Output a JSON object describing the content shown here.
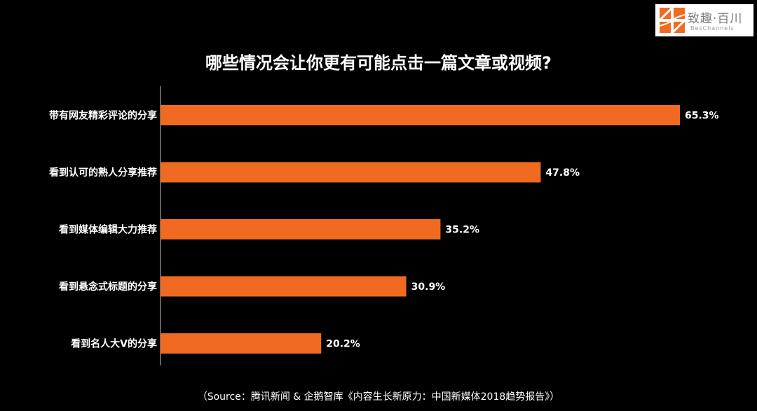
{
  "logo": {
    "name_cn": "致趣·百川",
    "name_en": "BesChannels"
  },
  "colors": {
    "bar": "#f06a22",
    "background": "#000000",
    "axis": "#bfbfbf",
    "text": "#ffffff"
  },
  "chart_data": {
    "type": "bar",
    "orientation": "horizontal",
    "title": "哪些情况会让你更有可能点击一篇文章或视频?",
    "categories": [
      "带有网友精彩评论的分享",
      "看到认可的熟人分享推荐",
      "看到媒体编辑大力推荐",
      "看到悬念式标题的分享",
      "看到名人大V的分享"
    ],
    "values": [
      65.3,
      47.8,
      35.2,
      30.9,
      20.2
    ],
    "value_labels": [
      "65.3%",
      "47.8%",
      "35.2%",
      "30.9%",
      "20.2%"
    ],
    "unit": "%",
    "xlim": [
      0,
      65.3
    ],
    "grid": false,
    "legend": "none"
  },
  "source": "（Source：腾讯新闻 & 企鹅智库《内容生长新原力：中国新媒体2018趋势报告》）"
}
